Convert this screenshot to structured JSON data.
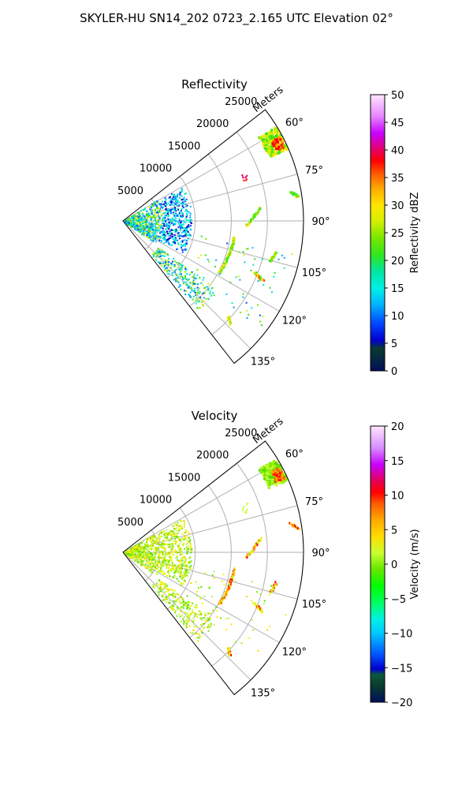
{
  "page": {
    "title": "SKYLER-HU  SN14_202  0723_2.165 UTC Elevation 02°"
  },
  "chart_data": [
    {
      "type": "heatmap",
      "title": "Reflectivity",
      "radial_label": "Meters",
      "radial_ticks": [
        "5000",
        "10000",
        "15000",
        "20000",
        "25000"
      ],
      "radial_tick_values": [
        5000,
        10000,
        15000,
        20000,
        25000
      ],
      "rlim": [
        0,
        25000
      ],
      "azimuth_range_deg": [
        52,
        142
      ],
      "azimuth_ticks": [
        "60°",
        "75°",
        "90°",
        "105°",
        "120°",
        "135°"
      ],
      "azimuth_tick_values": [
        60,
        75,
        90,
        105,
        120,
        135
      ],
      "grid": true,
      "colorbar": {
        "label": "Reflectivity dBZ",
        "range": [
          0,
          50
        ],
        "ticks": [
          "0",
          "5",
          "10",
          "15",
          "20",
          "25",
          "30",
          "35",
          "40",
          "45",
          "50"
        ]
      }
    },
    {
      "type": "heatmap",
      "title": "Velocity",
      "radial_label": "Meters",
      "radial_ticks": [
        "5000",
        "10000",
        "15000",
        "20000",
        "25000"
      ],
      "radial_tick_values": [
        5000,
        10000,
        15000,
        20000,
        25000
      ],
      "rlim": [
        0,
        25000
      ],
      "azimuth_range_deg": [
        52,
        142
      ],
      "azimuth_ticks": [
        "60°",
        "75°",
        "90°",
        "105°",
        "120°",
        "135°"
      ],
      "azimuth_tick_values": [
        60,
        75,
        90,
        105,
        120,
        135
      ],
      "grid": true,
      "colorbar": {
        "label": "Velocity (m/s)",
        "range": [
          -20,
          20
        ],
        "ticks": [
          "−20",
          "−15",
          "−10",
          "−5",
          "0",
          "5",
          "10",
          "15",
          "20"
        ]
      }
    }
  ]
}
